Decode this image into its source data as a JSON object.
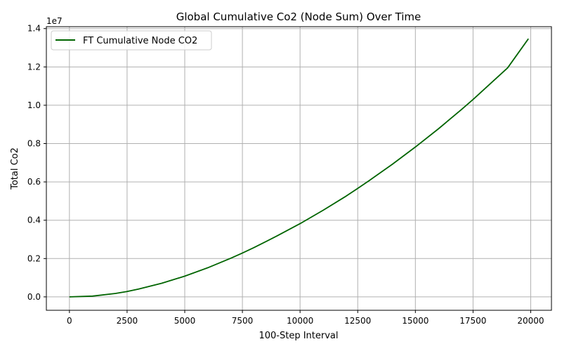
{
  "chart_data": {
    "type": "line",
    "title": "Global Cumulative Co2 (Node Sum) Over Time",
    "xlabel": "100-Step Interval",
    "ylabel": "Total Co2",
    "y_offset_label": "1e7",
    "xlim": [
      -1000,
      20900
    ],
    "ylim": [
      -0.07,
      1.41
    ],
    "y_scale_factor": 10000000,
    "x_ticks": [
      0,
      2500,
      5000,
      7500,
      10000,
      12500,
      15000,
      17500,
      20000
    ],
    "x_tick_labels": [
      "0",
      "2500",
      "5000",
      "7500",
      "10000",
      "12500",
      "15000",
      "17500",
      "20000"
    ],
    "y_ticks": [
      0.0,
      0.2,
      0.4,
      0.6,
      0.8,
      1.0,
      1.2,
      1.4
    ],
    "y_tick_labels": [
      "0.0",
      "0.2",
      "0.4",
      "0.6",
      "0.8",
      "1.0",
      "1.2",
      "1.4"
    ],
    "grid": true,
    "legend_position": "top-left",
    "series": [
      {
        "name": "FT Cumulative Node CO2",
        "color": "#006400",
        "x": [
          0,
          1000,
          2000,
          2500,
          3000,
          4000,
          5000,
          6000,
          7000,
          7500,
          8000,
          9000,
          10000,
          11000,
          12000,
          12500,
          13000,
          14000,
          15000,
          16000,
          17000,
          17500,
          18000,
          19000,
          19900
        ],
        "y": [
          0.0,
          0.004,
          0.018,
          0.028,
          0.041,
          0.071,
          0.108,
          0.152,
          0.202,
          0.229,
          0.257,
          0.318,
          0.382,
          0.452,
          0.526,
          0.566,
          0.607,
          0.692,
          0.782,
          0.877,
          0.978,
          1.03,
          1.085,
          1.195,
          1.347
        ]
      }
    ]
  }
}
